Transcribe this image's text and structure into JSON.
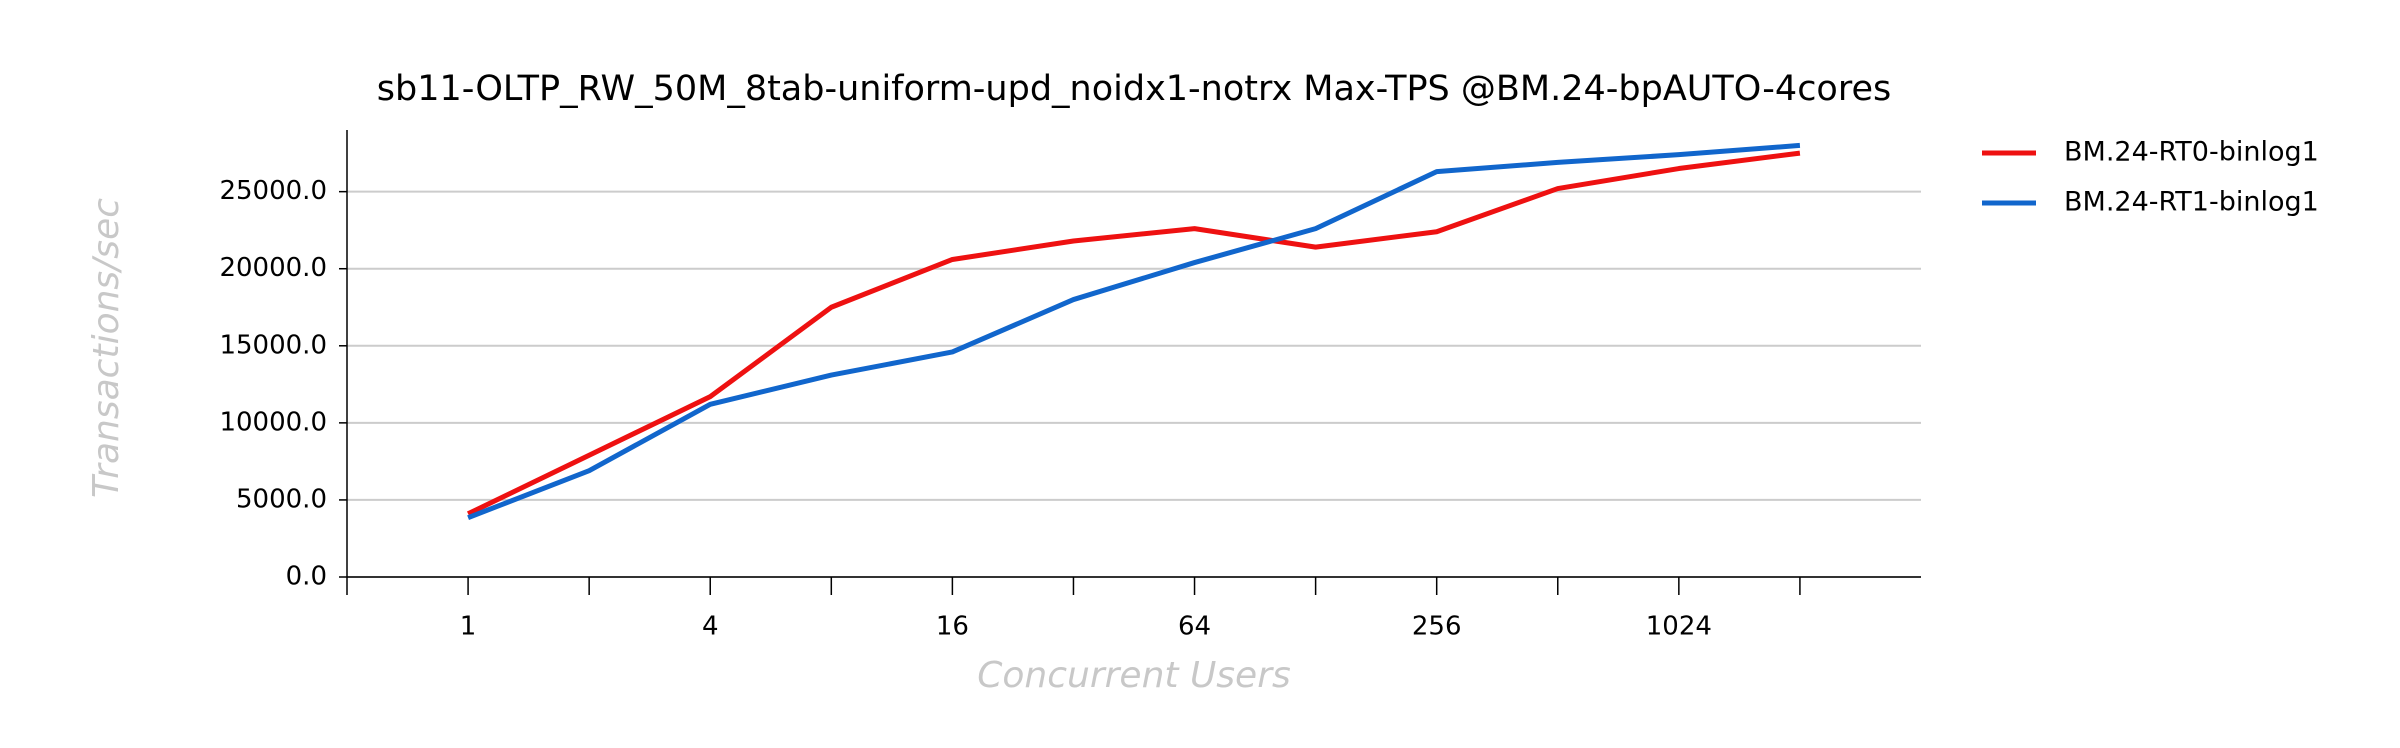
{
  "chart_data": {
    "type": "line",
    "title": "sb11-OLTP_RW_50M_8tab-uniform-upd_noidx1-notrx Max-TPS @BM.24-bpAUTO-4cores",
    "x_label": "Concurrent Users",
    "y_label": "Transactions/sec",
    "x_scale": "log2",
    "x": [
      1,
      2,
      4,
      8,
      16,
      32,
      64,
      128,
      256,
      512,
      1024,
      2048
    ],
    "series": [
      {
        "name": "BM.24-RT0-binlog1",
        "color": "#ee1111",
        "values": [
          4100,
          7900,
          11700,
          17500,
          20600,
          21800,
          22600,
          21400,
          22400,
          25200,
          26500,
          27500
        ]
      },
      {
        "name": "BM.24-RT1-binlog1",
        "color": "#1166cc",
        "values": [
          3850,
          6900,
          11200,
          13100,
          14600,
          18000,
          20400,
          22600,
          26300,
          26900,
          27400,
          28000
        ]
      }
    ],
    "xlim": [
      0.5,
      4096
    ],
    "xticks": [
      1,
      4,
      16,
      64,
      256,
      1024
    ],
    "xticks_minor": [
      0.5,
      2,
      8,
      32,
      128,
      512,
      2048
    ],
    "ylim": [
      0,
      29000
    ],
    "yticks": [
      {
        "value": 0,
        "label": "0.0"
      },
      {
        "value": 5000,
        "label": "5000.0"
      },
      {
        "value": 10000,
        "label": "10000.0"
      },
      {
        "value": 15000,
        "label": "15000.0"
      },
      {
        "value": 20000,
        "label": "20000.0"
      },
      {
        "value": 25000,
        "label": "25000.0"
      }
    ],
    "grid": true,
    "legend": "outside-right"
  }
}
